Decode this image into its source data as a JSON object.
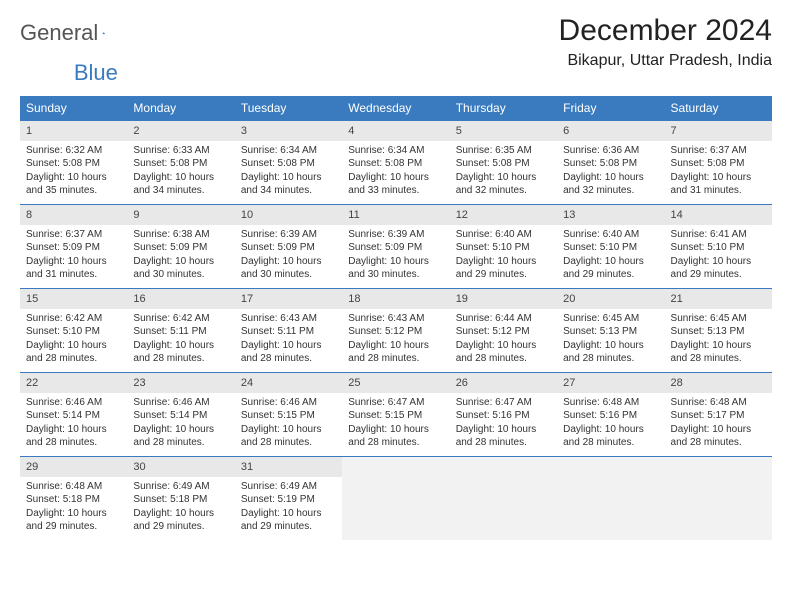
{
  "logo": {
    "text1": "General",
    "text2": "Blue"
  },
  "title": "December 2024",
  "location": "Bikapur, Uttar Pradesh, India",
  "colors": {
    "header_bg": "#3a7bbf",
    "header_text": "#ffffff",
    "daynum_bg": "#e8e8e8",
    "border": "#3a7bbf",
    "empty_bg": "#f2f2f2"
  },
  "weekdays": [
    "Sunday",
    "Monday",
    "Tuesday",
    "Wednesday",
    "Thursday",
    "Friday",
    "Saturday"
  ],
  "weeks": [
    [
      {
        "n": "1",
        "sr": "6:32 AM",
        "ss": "5:08 PM",
        "d": "10 hours and 35 minutes."
      },
      {
        "n": "2",
        "sr": "6:33 AM",
        "ss": "5:08 PM",
        "d": "10 hours and 34 minutes."
      },
      {
        "n": "3",
        "sr": "6:34 AM",
        "ss": "5:08 PM",
        "d": "10 hours and 34 minutes."
      },
      {
        "n": "4",
        "sr": "6:34 AM",
        "ss": "5:08 PM",
        "d": "10 hours and 33 minutes."
      },
      {
        "n": "5",
        "sr": "6:35 AM",
        "ss": "5:08 PM",
        "d": "10 hours and 32 minutes."
      },
      {
        "n": "6",
        "sr": "6:36 AM",
        "ss": "5:08 PM",
        "d": "10 hours and 32 minutes."
      },
      {
        "n": "7",
        "sr": "6:37 AM",
        "ss": "5:08 PM",
        "d": "10 hours and 31 minutes."
      }
    ],
    [
      {
        "n": "8",
        "sr": "6:37 AM",
        "ss": "5:09 PM",
        "d": "10 hours and 31 minutes."
      },
      {
        "n": "9",
        "sr": "6:38 AM",
        "ss": "5:09 PM",
        "d": "10 hours and 30 minutes."
      },
      {
        "n": "10",
        "sr": "6:39 AM",
        "ss": "5:09 PM",
        "d": "10 hours and 30 minutes."
      },
      {
        "n": "11",
        "sr": "6:39 AM",
        "ss": "5:09 PM",
        "d": "10 hours and 30 minutes."
      },
      {
        "n": "12",
        "sr": "6:40 AM",
        "ss": "5:10 PM",
        "d": "10 hours and 29 minutes."
      },
      {
        "n": "13",
        "sr": "6:40 AM",
        "ss": "5:10 PM",
        "d": "10 hours and 29 minutes."
      },
      {
        "n": "14",
        "sr": "6:41 AM",
        "ss": "5:10 PM",
        "d": "10 hours and 29 minutes."
      }
    ],
    [
      {
        "n": "15",
        "sr": "6:42 AM",
        "ss": "5:10 PM",
        "d": "10 hours and 28 minutes."
      },
      {
        "n": "16",
        "sr": "6:42 AM",
        "ss": "5:11 PM",
        "d": "10 hours and 28 minutes."
      },
      {
        "n": "17",
        "sr": "6:43 AM",
        "ss": "5:11 PM",
        "d": "10 hours and 28 minutes."
      },
      {
        "n": "18",
        "sr": "6:43 AM",
        "ss": "5:12 PM",
        "d": "10 hours and 28 minutes."
      },
      {
        "n": "19",
        "sr": "6:44 AM",
        "ss": "5:12 PM",
        "d": "10 hours and 28 minutes."
      },
      {
        "n": "20",
        "sr": "6:45 AM",
        "ss": "5:13 PM",
        "d": "10 hours and 28 minutes."
      },
      {
        "n": "21",
        "sr": "6:45 AM",
        "ss": "5:13 PM",
        "d": "10 hours and 28 minutes."
      }
    ],
    [
      {
        "n": "22",
        "sr": "6:46 AM",
        "ss": "5:14 PM",
        "d": "10 hours and 28 minutes."
      },
      {
        "n": "23",
        "sr": "6:46 AM",
        "ss": "5:14 PM",
        "d": "10 hours and 28 minutes."
      },
      {
        "n": "24",
        "sr": "6:46 AM",
        "ss": "5:15 PM",
        "d": "10 hours and 28 minutes."
      },
      {
        "n": "25",
        "sr": "6:47 AM",
        "ss": "5:15 PM",
        "d": "10 hours and 28 minutes."
      },
      {
        "n": "26",
        "sr": "6:47 AM",
        "ss": "5:16 PM",
        "d": "10 hours and 28 minutes."
      },
      {
        "n": "27",
        "sr": "6:48 AM",
        "ss": "5:16 PM",
        "d": "10 hours and 28 minutes."
      },
      {
        "n": "28",
        "sr": "6:48 AM",
        "ss": "5:17 PM",
        "d": "10 hours and 28 minutes."
      }
    ],
    [
      {
        "n": "29",
        "sr": "6:48 AM",
        "ss": "5:18 PM",
        "d": "10 hours and 29 minutes."
      },
      {
        "n": "30",
        "sr": "6:49 AM",
        "ss": "5:18 PM",
        "d": "10 hours and 29 minutes."
      },
      {
        "n": "31",
        "sr": "6:49 AM",
        "ss": "5:19 PM",
        "d": "10 hours and 29 minutes."
      },
      null,
      null,
      null,
      null
    ]
  ],
  "labels": {
    "sunrise": "Sunrise:",
    "sunset": "Sunset:",
    "daylight": "Daylight:"
  }
}
